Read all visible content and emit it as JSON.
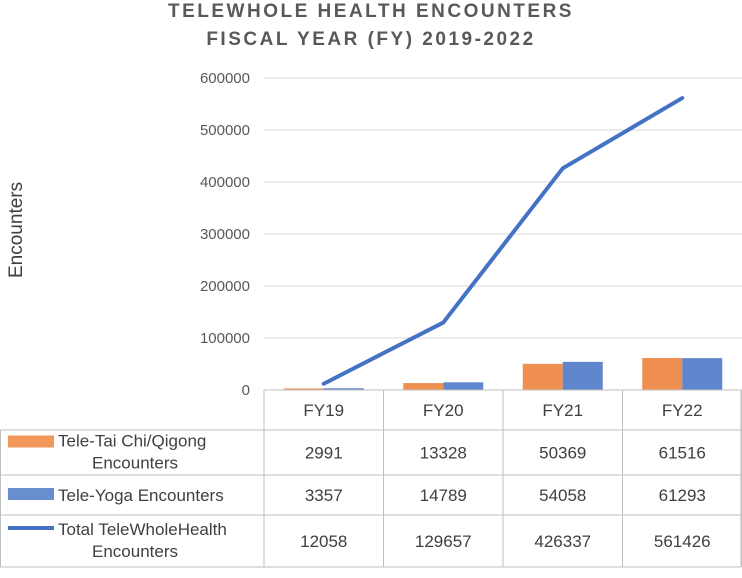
{
  "title_line1": "TELEWHOLE HEALTH ENCOUNTERS",
  "title_line2": "FISCAL YEAR (FY) 2019-2022",
  "chart_data": {
    "type": "bar",
    "title": "TELEWHOLE HEALTH ENCOUNTERS FISCAL YEAR (FY) 2019-2022",
    "ylabel": "Encounters",
    "xlabel": "",
    "ylim": [
      0,
      600000
    ],
    "yticks": [
      0,
      100000,
      200000,
      300000,
      400000,
      500000,
      600000
    ],
    "categories": [
      "FY19",
      "FY20",
      "FY21",
      "FY22"
    ],
    "series": [
      {
        "name": "Tele-Tai Chi/Qigong Encounters",
        "kind": "bar",
        "color": "#ED7D31",
        "values": [
          2991,
          13328,
          50369,
          61516
        ]
      },
      {
        "name": "Tele-Yoga Encounters",
        "kind": "bar",
        "color": "#4472C4",
        "values": [
          3357,
          14789,
          54058,
          61293
        ]
      },
      {
        "name": "Total TeleWholeHealth Encounters",
        "kind": "line",
        "color": "#4472C4",
        "values": [
          12058,
          129657,
          426337,
          561426
        ]
      }
    ],
    "grid": true,
    "legend": "data table"
  }
}
